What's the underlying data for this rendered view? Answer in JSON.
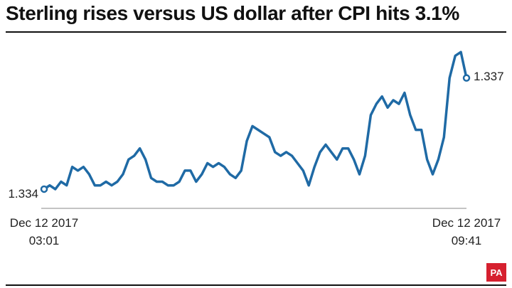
{
  "title": "Sterling rises versus US dollar after CPI hits 3.1%",
  "brand": "PA",
  "colors": {
    "line": "#1f6aa5",
    "text": "#222222",
    "baseline": "#888888",
    "brand": "#d6202f"
  },
  "chart_data": {
    "type": "line",
    "title": "Sterling rises versus US dollar after CPI hits 3.1%",
    "xlabel": "",
    "ylabel": "",
    "ylim": [
      1.3335,
      1.3378
    ],
    "grid": false,
    "start_label": {
      "date": "Dec 12 2017",
      "time": "03:01",
      "value": "1.334"
    },
    "end_label": {
      "date": "Dec 12 2017",
      "time": "09:41",
      "value": "1.337"
    },
    "series": [
      {
        "values": [
          1.334,
          1.3341,
          1.334,
          1.3342,
          1.3341,
          1.3346,
          1.3345,
          1.3346,
          1.3344,
          1.3341,
          1.3341,
          1.3342,
          1.3341,
          1.3342,
          1.3344,
          1.3348,
          1.3349,
          1.3351,
          1.3348,
          1.3343,
          1.3342,
          1.3342,
          1.3341,
          1.3341,
          1.3342,
          1.3345,
          1.3345,
          1.3342,
          1.3344,
          1.3347,
          1.3346,
          1.3347,
          1.3346,
          1.3344,
          1.3343,
          1.3345,
          1.3353,
          1.3357,
          1.3356,
          1.3355,
          1.3354,
          1.335,
          1.3349,
          1.335,
          1.3349,
          1.3347,
          1.3345,
          1.3341,
          1.3346,
          1.335,
          1.3352,
          1.335,
          1.3348,
          1.3351,
          1.3351,
          1.3348,
          1.3344,
          1.3349,
          1.336,
          1.3363,
          1.3365,
          1.3362,
          1.3364,
          1.3363,
          1.3366,
          1.336,
          1.3356,
          1.3356,
          1.3348,
          1.3344,
          1.3348,
          1.3354,
          1.337,
          1.3376,
          1.3377,
          1.337
        ]
      }
    ]
  }
}
